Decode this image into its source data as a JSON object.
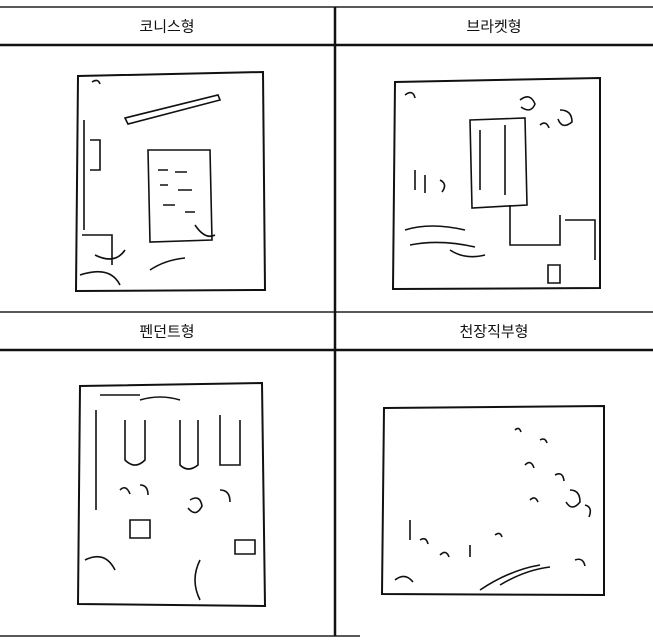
{
  "table": {
    "rows": [
      [
        "코니스형",
        "브라켓형"
      ],
      [
        "펜던트형",
        "천장직부형"
      ]
    ]
  }
}
